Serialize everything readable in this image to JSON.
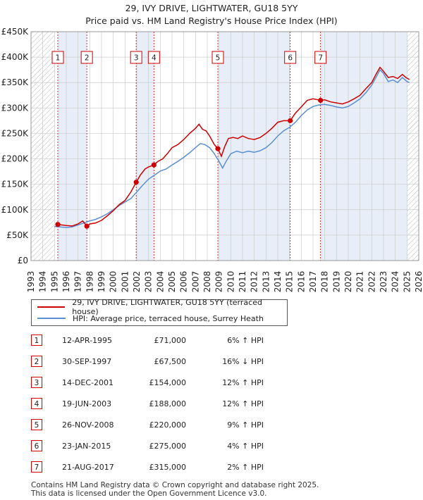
{
  "header": {
    "title": "29, IVY DRIVE, LIGHTWATER, GU18 5YY",
    "subtitle": "Price paid vs. HM Land Registry's House Price Index (HPI)"
  },
  "chart_data": {
    "type": "line",
    "x_range": [
      1993,
      2026
    ],
    "ylim": [
      0,
      450000
    ],
    "y_ticks": [
      0,
      50000,
      100000,
      150000,
      200000,
      250000,
      300000,
      350000,
      400000,
      450000
    ],
    "y_tick_labels": [
      "£0",
      "£50K",
      "£100K",
      "£150K",
      "£200K",
      "£250K",
      "£300K",
      "£350K",
      "£400K",
      "£450K"
    ],
    "x_ticks": [
      1993,
      1994,
      1995,
      1996,
      1997,
      1998,
      1999,
      2000,
      2001,
      2002,
      2003,
      2004,
      2005,
      2006,
      2007,
      2008,
      2009,
      2010,
      2011,
      2012,
      2013,
      2014,
      2015,
      2016,
      2017,
      2018,
      2019,
      2020,
      2021,
      2022,
      2023,
      2024,
      2025,
      2026
    ],
    "x_tick_labels": [
      "1993",
      "1994",
      "1995",
      "1996",
      "1997",
      "1998",
      "1999",
      "2000",
      "2001",
      "2002",
      "2003",
      "2004",
      "2005",
      "2006",
      "2007",
      "2008",
      "2009",
      "2010",
      "2011",
      "2012",
      "2013",
      "2014",
      "2015",
      "2016",
      "2017",
      "2018",
      "2019",
      "2020",
      "2021",
      "2022",
      "2023",
      "2024",
      "2025",
      "2026"
    ],
    "hatched_ranges": [
      [
        1993,
        1995.0
      ],
      [
        2025.0,
        2026
      ]
    ],
    "shaded_spans": [
      [
        1995.28,
        1997.75
      ],
      [
        2001.95,
        2003.46
      ],
      [
        2008.9,
        2015.06
      ],
      [
        2017.64,
        2025.0
      ]
    ],
    "series": [
      {
        "name": "29, IVY DRIVE, LIGHTWATER, GU18 5YY (terraced house)",
        "color": "#cc0000",
        "x": [
          1995.28,
          1995.6,
          1996.0,
          1996.5,
          1997.0,
          1997.4,
          1997.75,
          1998.0,
          1998.5,
          1999.0,
          1999.5,
          2000.0,
          2000.5,
          2001.0,
          2001.5,
          2001.95,
          2002.3,
          2002.7,
          2003.0,
          2003.46,
          2003.8,
          2004.2,
          2004.6,
          2005.0,
          2005.5,
          2006.0,
          2006.5,
          2007.0,
          2007.3,
          2007.6,
          2007.9,
          2008.2,
          2008.6,
          2008.9,
          2009.2,
          2009.5,
          2009.8,
          2010.2,
          2010.6,
          2011.0,
          2011.5,
          2012.0,
          2012.5,
          2013.0,
          2013.5,
          2014.0,
          2014.5,
          2015.06,
          2015.5,
          2016.0,
          2016.5,
          2017.0,
          2017.64,
          2018.0,
          2018.5,
          2019.0,
          2019.5,
          2020.0,
          2020.5,
          2021.0,
          2021.5,
          2022.0,
          2022.4,
          2022.7,
          2023.0,
          2023.4,
          2023.8,
          2024.2,
          2024.6,
          2024.9,
          2025.2
        ],
        "values": [
          71000,
          70000,
          69000,
          68000,
          72000,
          78000,
          67500,
          72000,
          74000,
          79000,
          88000,
          98000,
          110000,
          118000,
          135000,
          154000,
          168000,
          180000,
          184000,
          188000,
          195000,
          200000,
          210000,
          222000,
          228000,
          238000,
          250000,
          260000,
          268000,
          258000,
          255000,
          245000,
          228000,
          220000,
          205000,
          225000,
          240000,
          242000,
          240000,
          245000,
          240000,
          238000,
          242000,
          250000,
          260000,
          272000,
          275000,
          275000,
          290000,
          302000,
          315000,
          318000,
          315000,
          316000,
          312000,
          310000,
          308000,
          312000,
          318000,
          325000,
          338000,
          350000,
          368000,
          380000,
          372000,
          360000,
          362000,
          358000,
          366000,
          360000,
          356000
        ]
      },
      {
        "name": "HPI: Average price, terraced house, Surrey Heath",
        "color": "#5b8fd0",
        "x": [
          1995.0,
          1995.5,
          1996.0,
          1996.5,
          1997.0,
          1997.5,
          1998.0,
          1998.5,
          1999.0,
          1999.5,
          2000.0,
          2000.5,
          2001.0,
          2001.5,
          2002.0,
          2002.5,
          2003.0,
          2003.5,
          2004.0,
          2004.5,
          2005.0,
          2005.5,
          2006.0,
          2006.5,
          2007.0,
          2007.4,
          2007.8,
          2008.2,
          2008.6,
          2009.0,
          2009.3,
          2009.6,
          2010.0,
          2010.5,
          2011.0,
          2011.5,
          2012.0,
          2012.5,
          2013.0,
          2013.5,
          2014.0,
          2014.5,
          2015.0,
          2015.5,
          2016.0,
          2016.5,
          2017.0,
          2017.5,
          2018.0,
          2018.5,
          2019.0,
          2019.5,
          2020.0,
          2020.5,
          2021.0,
          2021.5,
          2022.0,
          2022.4,
          2022.7,
          2023.0,
          2023.4,
          2023.8,
          2024.2,
          2024.6,
          2025.0,
          2025.2
        ],
        "values": [
          67000,
          66000,
          65000,
          66000,
          70000,
          74000,
          78000,
          81000,
          86000,
          92000,
          100000,
          108000,
          115000,
          122000,
          135000,
          148000,
          160000,
          168000,
          176000,
          180000,
          188000,
          195000,
          203000,
          212000,
          222000,
          230000,
          228000,
          222000,
          210000,
          195000,
          182000,
          195000,
          210000,
          215000,
          212000,
          215000,
          213000,
          216000,
          222000,
          232000,
          245000,
          255000,
          262000,
          272000,
          285000,
          296000,
          303000,
          306000,
          307000,
          305000,
          302000,
          300000,
          303000,
          310000,
          318000,
          330000,
          345000,
          362000,
          375000,
          368000,
          352000,
          355000,
          350000,
          360000,
          352000,
          350000
        ]
      }
    ],
    "sales": [
      {
        "label": "1",
        "x": 1995.28,
        "value": 71000
      },
      {
        "label": "2",
        "x": 1997.75,
        "value": 67500
      },
      {
        "label": "3",
        "x": 2001.95,
        "value": 154000
      },
      {
        "label": "4",
        "x": 2003.46,
        "value": 188000
      },
      {
        "label": "5",
        "x": 2008.9,
        "value": 220000
      },
      {
        "label": "6",
        "x": 2015.06,
        "value": 275000
      },
      {
        "label": "7",
        "x": 2017.64,
        "value": 315000
      }
    ]
  },
  "legend": {
    "property_label": "29, IVY DRIVE, LIGHTWATER, GU18 5YY (terraced house)",
    "hpi_label": "HPI: Average price, terraced house, Surrey Heath"
  },
  "transactions": [
    {
      "num": "1",
      "date": "12-APR-1995",
      "price": "£71,000",
      "hpi": "6% ↑ HPI"
    },
    {
      "num": "2",
      "date": "30-SEP-1997",
      "price": "£67,500",
      "hpi": "16% ↓ HPI"
    },
    {
      "num": "3",
      "date": "14-DEC-2001",
      "price": "£154,000",
      "hpi": "12% ↑ HPI"
    },
    {
      "num": "4",
      "date": "19-JUN-2003",
      "price": "£188,000",
      "hpi": "12% ↑ HPI"
    },
    {
      "num": "5",
      "date": "26-NOV-2008",
      "price": "£220,000",
      "hpi": "9% ↑ HPI"
    },
    {
      "num": "6",
      "date": "23-JAN-2015",
      "price": "£275,000",
      "hpi": "4% ↑ HPI"
    },
    {
      "num": "7",
      "date": "21-AUG-2017",
      "price": "£315,000",
      "hpi": "2% ↑ HPI"
    }
  ],
  "footer": {
    "line1": "Contains HM Land Registry data © Crown copyright and database right 2025.",
    "line2": "This data is licensed under the Open Government Licence v3.0."
  },
  "colors": {
    "property": "#cc0000",
    "hpi": "#5b8fd0",
    "shade": "#e8eef8",
    "grid": "#cccccc"
  }
}
